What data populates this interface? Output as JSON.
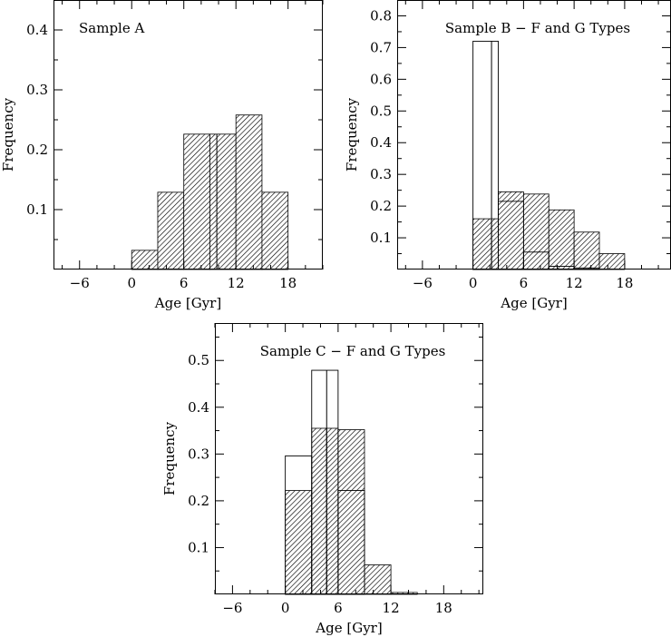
{
  "chart_data": [
    {
      "type": "bar",
      "title": "Sample A",
      "xlabel": "Age [Gyr]",
      "ylabel": "Frequency",
      "xlim": [
        -9,
        22
      ],
      "ylim": [
        0,
        0.45
      ],
      "xticks": [
        -6,
        0,
        6,
        12,
        18
      ],
      "xtick_labels": [
        "−6",
        "0",
        "6",
        "12",
        "18"
      ],
      "yticks": [
        0.1,
        0.2,
        0.3,
        0.4
      ],
      "ytick_labels": [
        "0.1",
        "0.2",
        "0.3",
        "0.4"
      ],
      "bin_width": 3,
      "hatched_bins": [
        {
          "x0": 0,
          "x1": 3,
          "freq": 0.032
        },
        {
          "x0": 3,
          "x1": 6,
          "freq": 0.129
        },
        {
          "x0": 6,
          "x1": 9,
          "freq": 0.226
        },
        {
          "x0": 9,
          "x1": 12,
          "freq": 0.226
        },
        {
          "x0": 12,
          "x1": 15,
          "freq": 0.258
        },
        {
          "x0": 15,
          "x1": 18,
          "freq": 0.129
        }
      ],
      "open_bins": [],
      "hatched_marker_x": 9.8,
      "open_marker_x": null
    },
    {
      "type": "bar",
      "title": "Sample B − F and G Types",
      "xlabel": "Age [Gyr]",
      "ylabel": "Frequency",
      "xlim": [
        -9,
        23.5
      ],
      "ylim": [
        0,
        0.85
      ],
      "xticks": [
        -6,
        0,
        6,
        12,
        18
      ],
      "xtick_labels": [
        "−6",
        "0",
        "6",
        "12",
        "18"
      ],
      "yticks": [
        0.1,
        0.2,
        0.3,
        0.4,
        0.5,
        0.6,
        0.7,
        0.8
      ],
      "ytick_labels": [
        "0.1",
        "0.2",
        "0.3",
        "0.4",
        "0.5",
        "0.6",
        "0.7",
        "0.8"
      ],
      "bin_width": 3,
      "hatched_bins": [
        {
          "x0": 0,
          "x1": 3,
          "freq": 0.16
        },
        {
          "x0": 3,
          "x1": 6,
          "freq": 0.245
        },
        {
          "x0": 6,
          "x1": 9,
          "freq": 0.238
        },
        {
          "x0": 9,
          "x1": 12,
          "freq": 0.188
        },
        {
          "x0": 12,
          "x1": 15,
          "freq": 0.118
        },
        {
          "x0": 15,
          "x1": 18,
          "freq": 0.05
        }
      ],
      "open_bins": [
        {
          "x0": 0,
          "x1": 3,
          "freq": 0.72
        },
        {
          "x0": 3,
          "x1": 6,
          "freq": 0.215
        },
        {
          "x0": 6,
          "x1": 9,
          "freq": 0.055
        },
        {
          "x0": 9,
          "x1": 12,
          "freq": 0.01
        },
        {
          "x0": 12,
          "x1": 15,
          "freq": 0.005
        }
      ],
      "hatched_marker_x": 2.2,
      "open_marker_x": 2.2
    },
    {
      "type": "bar",
      "title": "Sample C − F and G Types",
      "xlabel": "Age [Gyr]",
      "ylabel": "Frequency",
      "xlim": [
        -8,
        22.5
      ],
      "ylim": [
        0,
        0.58
      ],
      "xticks": [
        -6,
        0,
        6,
        12,
        18
      ],
      "xtick_labels": [
        "−6",
        "0",
        "6",
        "12",
        "18"
      ],
      "yticks": [
        0.1,
        0.2,
        0.3,
        0.4,
        0.5
      ],
      "ytick_labels": [
        "0.1",
        "0.2",
        "0.3",
        "0.4",
        "0.5"
      ],
      "bin_width": 3,
      "hatched_bins": [
        {
          "x0": 0,
          "x1": 3,
          "freq": 0.222
        },
        {
          "x0": 3,
          "x1": 6,
          "freq": 0.355
        },
        {
          "x0": 6,
          "x1": 9,
          "freq": 0.352
        },
        {
          "x0": 9,
          "x1": 12,
          "freq": 0.063
        },
        {
          "x0": 12,
          "x1": 15,
          "freq": 0.004
        }
      ],
      "open_bins": [
        {
          "x0": 0,
          "x1": 3,
          "freq": 0.296
        },
        {
          "x0": 3,
          "x1": 6,
          "freq": 0.479
        },
        {
          "x0": 6,
          "x1": 9,
          "freq": 0.222
        }
      ],
      "hatched_marker_x": 4.7,
      "open_marker_x": 4.7
    }
  ]
}
